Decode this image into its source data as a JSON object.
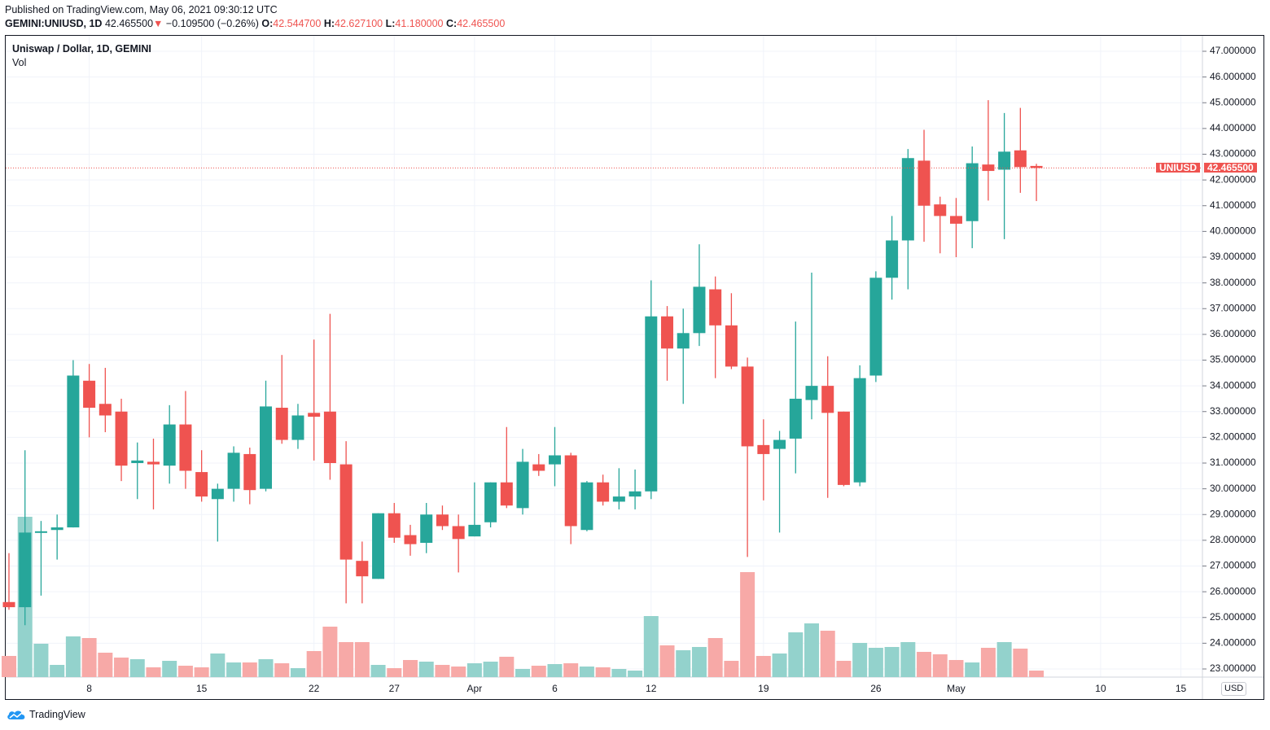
{
  "published": "Published on TradingView.com, May 06, 2021 09:30:12 UTC",
  "header": {
    "symbol": "GEMINI:UNIUSD, 1D",
    "last": "42.465500",
    "arrow": "▼",
    "change": "−0.109500 (−0.26%)",
    "o_label": "O:",
    "o": "42.544700",
    "h_label": "H:",
    "h": "42.627100",
    "l_label": "L:",
    "l": "41.180000",
    "c_label": "C:",
    "c": "42.465500"
  },
  "legend": {
    "title": "Uniswap / Dollar, 1D, GEMINI",
    "volume": "Vol"
  },
  "currency_badge": "USD",
  "price_tag": {
    "symbol": "UNIUSD",
    "value": "42.465500"
  },
  "footer": {
    "brand": "TradingView"
  },
  "colors": {
    "up": "#26a69a",
    "down": "#ef5350",
    "up_vol": "#93d2cc",
    "down_vol": "#f7a9a7",
    "grid": "#f0f3fa"
  },
  "chart_data": {
    "type": "candlestick",
    "title": "Uniswap / Dollar, 1D, GEMINI",
    "ylim": [
      23,
      47
    ],
    "y_ticks": [
      23,
      24,
      25,
      26,
      27,
      28,
      29,
      30,
      31,
      32,
      33,
      34,
      35,
      36,
      37,
      38,
      39,
      40,
      41,
      42,
      43,
      44,
      45,
      46,
      47
    ],
    "x_start": "2021-03-03",
    "x_ticks": [
      {
        "day": 5,
        "label": "8"
      },
      {
        "day": 12,
        "label": "15"
      },
      {
        "day": 19,
        "label": "22"
      },
      {
        "day": 24,
        "label": "27"
      },
      {
        "day": 29,
        "label": "Apr"
      },
      {
        "day": 34,
        "label": "6"
      },
      {
        "day": 40,
        "label": "12"
      },
      {
        "day": 47,
        "label": "19"
      },
      {
        "day": 54,
        "label": "26"
      },
      {
        "day": 59,
        "label": "May"
      },
      {
        "day": 68,
        "label": "10"
      },
      {
        "day": 73,
        "label": "15"
      }
    ],
    "x_days_total": 75,
    "columns": [
      "open",
      "high",
      "low",
      "close",
      "volume_relative"
    ],
    "ohlcv": [
      [
        25.6,
        27.5,
        25.3,
        25.4,
        26
      ],
      [
        25.4,
        31.5,
        24.7,
        28.3,
        197
      ],
      [
        28.3,
        28.75,
        25.85,
        28.35,
        41
      ],
      [
        28.4,
        29.0,
        27.25,
        28.5,
        15
      ],
      [
        28.5,
        35.0,
        28.5,
        34.4,
        50
      ],
      [
        34.2,
        34.85,
        32.0,
        33.15,
        48
      ],
      [
        33.3,
        34.7,
        32.2,
        32.85,
        30
      ],
      [
        33.0,
        33.5,
        30.3,
        30.9,
        24
      ],
      [
        31.0,
        31.8,
        29.6,
        31.1,
        22
      ],
      [
        31.05,
        31.95,
        29.2,
        30.95,
        12
      ],
      [
        30.9,
        33.25,
        30.2,
        32.5,
        20
      ],
      [
        32.5,
        33.8,
        30.0,
        30.7,
        14
      ],
      [
        30.65,
        31.5,
        29.5,
        29.7,
        12
      ],
      [
        29.6,
        30.2,
        27.95,
        30.0,
        29
      ],
      [
        30.0,
        31.65,
        29.5,
        31.4,
        18
      ],
      [
        31.35,
        31.6,
        29.4,
        29.95,
        18
      ],
      [
        30.0,
        34.2,
        29.9,
        33.2,
        22
      ],
      [
        33.15,
        35.2,
        31.75,
        31.9,
        17
      ],
      [
        31.9,
        33.3,
        31.55,
        32.85,
        11
      ],
      [
        32.95,
        35.8,
        31.1,
        32.8,
        32
      ],
      [
        33.0,
        36.8,
        30.35,
        31.0,
        62
      ],
      [
        30.95,
        31.85,
        25.55,
        27.25,
        43
      ],
      [
        27.2,
        27.95,
        25.55,
        26.6,
        43
      ],
      [
        26.5,
        29.05,
        26.5,
        29.05,
        15
      ],
      [
        29.05,
        29.45,
        27.9,
        28.1,
        11
      ],
      [
        28.2,
        28.6,
        27.4,
        27.85,
        21
      ],
      [
        27.9,
        29.45,
        27.5,
        29.0,
        19
      ],
      [
        29.0,
        29.35,
        28.4,
        28.55,
        15
      ],
      [
        28.55,
        29.0,
        26.75,
        28.05,
        13
      ],
      [
        28.15,
        30.25,
        28.15,
        28.6,
        17
      ],
      [
        28.7,
        30.25,
        28.5,
        30.25,
        19
      ],
      [
        30.25,
        32.4,
        29.25,
        29.35,
        25
      ],
      [
        29.25,
        31.55,
        29.0,
        31.05,
        10
      ],
      [
        30.95,
        31.35,
        30.5,
        30.7,
        14
      ],
      [
        30.95,
        32.4,
        30.1,
        31.3,
        16
      ],
      [
        31.3,
        31.4,
        27.85,
        28.55,
        17
      ],
      [
        28.4,
        30.3,
        28.35,
        30.25,
        13
      ],
      [
        30.25,
        30.55,
        29.35,
        29.5,
        12
      ],
      [
        29.5,
        30.8,
        29.2,
        29.7,
        10
      ],
      [
        29.7,
        30.75,
        29.2,
        29.9,
        8
      ],
      [
        29.9,
        38.1,
        29.6,
        36.7,
        75
      ],
      [
        36.7,
        37.1,
        34.2,
        35.45,
        39
      ],
      [
        35.45,
        37.0,
        33.3,
        36.05,
        33
      ],
      [
        36.05,
        39.5,
        35.55,
        37.85,
        37
      ],
      [
        37.75,
        38.25,
        34.3,
        36.35,
        48
      ],
      [
        36.35,
        37.6,
        34.65,
        34.75,
        20
      ],
      [
        34.75,
        35.1,
        27.35,
        31.65,
        129
      ],
      [
        31.7,
        32.7,
        29.55,
        31.35,
        26
      ],
      [
        31.55,
        32.25,
        28.3,
        31.9,
        29
      ],
      [
        31.95,
        36.5,
        30.6,
        33.5,
        55
      ],
      [
        33.45,
        38.4,
        32.7,
        34.0,
        66
      ],
      [
        34.0,
        35.15,
        29.65,
        32.95,
        57
      ],
      [
        33.0,
        33.0,
        30.1,
        30.15,
        20
      ],
      [
        30.25,
        34.8,
        30.1,
        34.3,
        42
      ],
      [
        34.4,
        38.45,
        34.15,
        38.2,
        36
      ],
      [
        38.2,
        40.6,
        37.35,
        39.65,
        37
      ],
      [
        39.65,
        43.2,
        37.75,
        42.85,
        43
      ],
      [
        42.75,
        43.95,
        39.6,
        41.0,
        31
      ],
      [
        41.05,
        41.35,
        39.15,
        40.6,
        28
      ],
      [
        40.6,
        41.3,
        39.0,
        40.3,
        21
      ],
      [
        40.4,
        43.3,
        39.35,
        42.65,
        18
      ],
      [
        42.6,
        45.1,
        41.2,
        42.35,
        36
      ],
      [
        42.4,
        44.6,
        39.7,
        43.1,
        43
      ],
      [
        43.15,
        44.8,
        41.5,
        42.5,
        35
      ],
      [
        42.5447,
        42.6271,
        41.18,
        42.4655,
        8
      ]
    ],
    "last_price": 42.4655
  }
}
